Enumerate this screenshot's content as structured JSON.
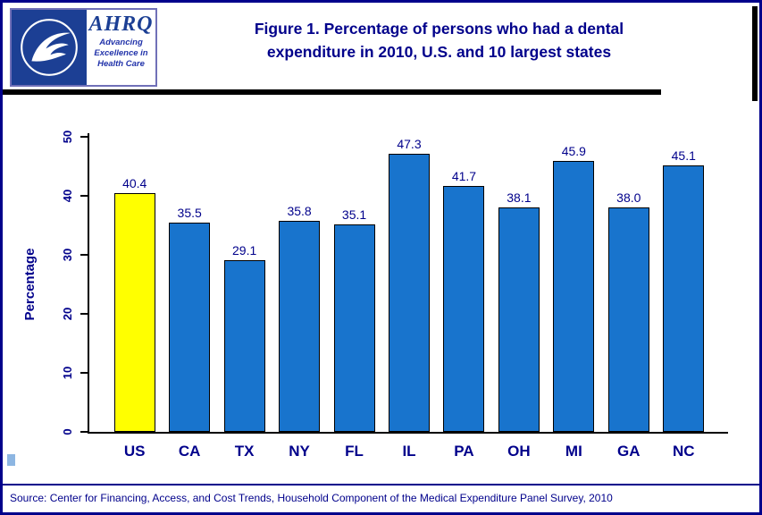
{
  "logo": {
    "ahrq": "AHRQ",
    "tagline": [
      "Advancing",
      "Excellence in",
      "Health Care"
    ]
  },
  "header": {
    "title": "Figure 1. Percentage of persons who had a dental expenditure in 2010, U.S. and 10 largest states"
  },
  "chart_data": {
    "type": "bar",
    "categories": [
      "US",
      "CA",
      "TX",
      "NY",
      "FL",
      "IL",
      "PA",
      "OH",
      "MI",
      "GA",
      "NC"
    ],
    "values": [
      40.4,
      35.5,
      29.1,
      35.8,
      35.1,
      47.3,
      41.7,
      38.1,
      45.9,
      38.0,
      45.1
    ],
    "value_labels": [
      "40.4",
      "35.5",
      "29.1",
      "35.8",
      "35.1",
      "47.3",
      "41.7",
      "38.1",
      "45.9",
      "38.0",
      "45.1"
    ],
    "title": "Figure 1. Percentage of persons who had a dental expenditure in 2010, U.S. and 10 largest states",
    "xlabel": "",
    "ylabel": "Percentage",
    "ylim": [
      0,
      50
    ],
    "yticks": [
      0,
      10,
      20,
      30,
      40,
      50
    ],
    "grid": false,
    "legend": "none",
    "bar_color": "#1874CD",
    "highlight_index": 0,
    "highlight_color": "#FFFF00"
  },
  "footer": {
    "source": "Source: Center for Financing, Access, and Cost Trends, Household Component of the Medical Expenditure Panel Survey, 2010"
  }
}
